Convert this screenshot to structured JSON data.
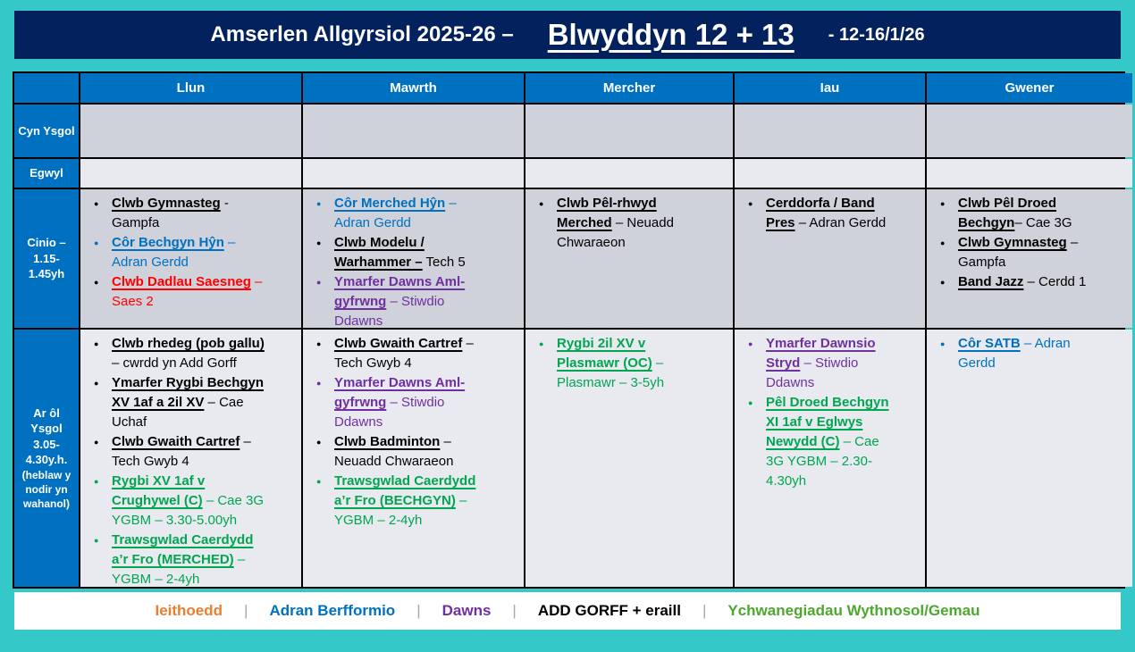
{
  "header": {
    "title_left": "Amserlen Allgyrsiol 2025-26 –",
    "title_main": "Blwyddyn 12 + 13",
    "title_right": "- 12-16/1/26"
  },
  "icons": {
    "bullet": "●"
  },
  "colors": {
    "background_teal": "#35C8C8",
    "titlebar_navy": "#03215C",
    "header_blue": "#0070C0",
    "row_dark": "#CFD2DA",
    "row_light": "#E8EAF0",
    "black": "#000000",
    "blue": "#0070C0",
    "red": "#FF0000",
    "purple": "#7030A0",
    "green": "#00A650",
    "legend_green": "#4EA72E",
    "legend_orange": "#ED7D31",
    "separator_gray": "#A6A6A6"
  },
  "table": {
    "days": [
      "Llun",
      "Mawrth",
      "Mercher",
      "Iau",
      "Gwener"
    ],
    "row_labels": {
      "cyn_ysgol": "Cyn Ysgol",
      "egwyl": "Egwyl",
      "cinio": "Cinio – 1.15-1.45yh",
      "ar_ol_main": "Ar ôl Ysgol 3.05-4.30y.h.",
      "ar_ol_note": "(heblaw y nodir yn wahanol)"
    },
    "cinio": {
      "llun": [
        {
          "bullet": "#000000",
          "color": "#000000",
          "title": "Clwb Gymnasteg",
          "rest": " - Gampfa"
        },
        {
          "bullet": "#0070C0",
          "color": "#0070C0",
          "title": "Côr Bechgyn Hŷn",
          "rest": " – Adran Gerdd"
        },
        {
          "bullet": "#000000",
          "color": "#FF0000",
          "title": "Clwb Dadlau Saesneg",
          "rest": " – Saes 2"
        }
      ],
      "mawrth": [
        {
          "bullet": "#0070C0",
          "color": "#0070C0",
          "title": "Côr Merched Hŷn",
          "rest": " – Adran Gerdd"
        },
        {
          "bullet": "#000000",
          "color": "#000000",
          "title": "Clwb Modelu / Warhammer –",
          "rest": " Tech 5"
        },
        {
          "bullet": "#7030A0",
          "color": "#7030A0",
          "title": "Ymarfer Dawns Aml-gyfrwng",
          "rest": " – Stiwdio Ddawns"
        }
      ],
      "mercher": [
        {
          "bullet": "#000000",
          "color": "#000000",
          "title": "Clwb Pêl-rhwyd Merched",
          "rest": " – Neuadd Chwaraeon"
        }
      ],
      "iau": [
        {
          "bullet": "#000000",
          "color": "#000000",
          "title": "Cerddorfa / Band Pres",
          "rest": " – Adran Gerdd"
        }
      ],
      "gwener": [
        {
          "bullet": "#000000",
          "color": "#000000",
          "title": "Clwb Pêl Droed Bechgyn",
          "rest": "– Cae 3G"
        },
        {
          "bullet": "#000000",
          "color": "#000000",
          "title": "Clwb Gymnasteg",
          "rest": " – Gampfa"
        },
        {
          "bullet": "#000000",
          "color": "#000000",
          "title": "Band Jazz",
          "rest": " – Cerdd 1"
        }
      ]
    },
    "ar_ol": {
      "llun": [
        {
          "bullet": "#000000",
          "color": "#000000",
          "title": "Clwb rhedeg (pob gallu)",
          "rest": " – cwrdd yn Add Gorff"
        },
        {
          "bullet": "#000000",
          "color": "#000000",
          "title": "Ymarfer Rygbi Bechgyn XV 1af a 2il XV",
          "rest": " – Cae Uchaf"
        },
        {
          "bullet": "#000000",
          "color": "#000000",
          "title": "Clwb Gwaith Cartref",
          "rest": " – Tech Gwyb 4"
        },
        {
          "bullet": "#00A650",
          "color": "#00A650",
          "title": "Rygbi XV 1af v Crughywel (C)",
          "rest": " – Cae 3G YGBM – 3.30-5.00yh"
        },
        {
          "bullet": "#00A650",
          "color": "#00A650",
          "title": "Trawsgwlad Caerdydd a’r Fro (MERCHED)",
          "rest": " – YGBM – 2-4yh"
        }
      ],
      "mawrth": [
        {
          "bullet": "#000000",
          "color": "#000000",
          "title": "Clwb Gwaith Cartref",
          "rest": " – Tech Gwyb 4"
        },
        {
          "bullet": "#7030A0",
          "color": "#7030A0",
          "title": "Ymarfer Dawns Aml-gyfrwng",
          "rest": " – Stiwdio Ddawns"
        },
        {
          "bullet": "#000000",
          "color": "#000000",
          "title": "Clwb Badminton",
          "rest": " – Neuadd Chwaraeon"
        },
        {
          "bullet": "#00A650",
          "color": "#00A650",
          "title": "Trawsgwlad Caerdydd a’r Fro (BECHGYN)",
          "rest": " – YGBM – 2-4yh"
        }
      ],
      "mercher": [
        {
          "bullet": "#00A650",
          "color": "#00A650",
          "title": "Rygbi 2il XV v Plasmawr (OC)",
          "rest": " – Plasmawr – 3-5yh"
        }
      ],
      "iau": [
        {
          "bullet": "#7030A0",
          "color": "#7030A0",
          "title": "Ymarfer Dawnsio Stryd",
          "rest": " – Stiwdio Ddawns"
        },
        {
          "bullet": "#00A650",
          "color": "#00A650",
          "title": "Pêl Droed Bechgyn XI 1af v Eglwys Newydd (C)",
          "rest": " – Cae 3G YGBM – 2.30-4.30yh"
        }
      ],
      "gwener": [
        {
          "bullet": "#0070C0",
          "color": "#0070C0",
          "title": "Côr SATB",
          "rest": " – Adran Gerdd"
        }
      ]
    }
  },
  "legend": {
    "separator": "|",
    "items": [
      {
        "label": "Ieithoedd",
        "color": "#ED7D31"
      },
      {
        "label": "Adran Berfformio",
        "color": "#0070C0"
      },
      {
        "label": "Dawns",
        "color": "#7030A0"
      },
      {
        "label": "ADD GORFF + eraill",
        "color": "#000000"
      },
      {
        "label": "Ychwanegiadau Wythnosol/Gemau",
        "color": "#4EA72E"
      }
    ]
  }
}
